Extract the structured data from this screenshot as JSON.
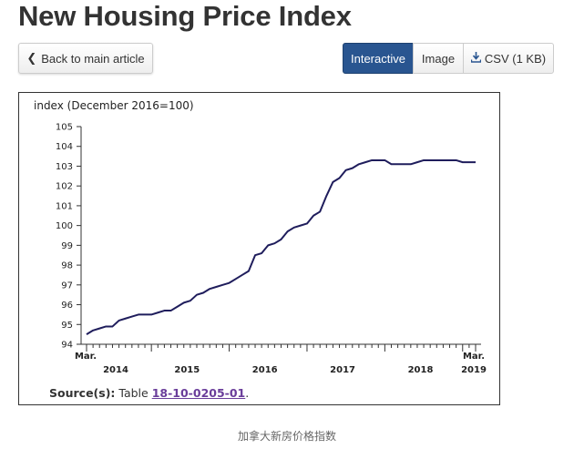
{
  "header": {
    "title": "New Housing Price Index"
  },
  "toolbar": {
    "back_label": "Back to main article",
    "view_tabs": [
      "Interactive",
      "Image",
      "CSV (1 KB)"
    ],
    "active_tab": "Interactive",
    "accent_color": "#295590"
  },
  "icons": {
    "back": "chevron-left-icon",
    "csv": "download-icon"
  },
  "chart_data": {
    "type": "line",
    "ylabel": "index (December 2016=100)",
    "ylim": [
      94,
      105
    ],
    "yticks": [
      94,
      95,
      96,
      97,
      98,
      99,
      100,
      101,
      102,
      103,
      104,
      105
    ],
    "x_start_label": "Mar.",
    "x_end_label": "Mar.",
    "years": [
      "2014",
      "2015",
      "2016",
      "2017",
      "2018",
      "2019"
    ],
    "line_color": "#1f1d5c",
    "grid": false,
    "series": [
      {
        "x": [
          "2014-03",
          "2014-04",
          "2014-05",
          "2014-06",
          "2014-07",
          "2014-08",
          "2014-09",
          "2014-10",
          "2014-11",
          "2014-12",
          "2015-01",
          "2015-02",
          "2015-03",
          "2015-04",
          "2015-05",
          "2015-06",
          "2015-07",
          "2015-08",
          "2015-09",
          "2015-10",
          "2015-11",
          "2015-12",
          "2016-01",
          "2016-02",
          "2016-03",
          "2016-04",
          "2016-05",
          "2016-06",
          "2016-07",
          "2016-08",
          "2016-09",
          "2016-10",
          "2016-11",
          "2016-12",
          "2017-01",
          "2017-02",
          "2017-03",
          "2017-04",
          "2017-05",
          "2017-06",
          "2017-07",
          "2017-08",
          "2017-09",
          "2017-10",
          "2017-11",
          "2017-12",
          "2018-01",
          "2018-02",
          "2018-03",
          "2018-04",
          "2018-05",
          "2018-06",
          "2018-07",
          "2018-08",
          "2018-09",
          "2018-10",
          "2018-11",
          "2018-12",
          "2019-01",
          "2019-02",
          "2019-03"
        ],
        "values": [
          94.5,
          94.7,
          94.8,
          94.9,
          94.9,
          95.2,
          95.3,
          95.4,
          95.5,
          95.5,
          95.5,
          95.6,
          95.7,
          95.7,
          95.9,
          96.1,
          96.2,
          96.5,
          96.6,
          96.8,
          96.9,
          97.0,
          97.1,
          97.3,
          97.5,
          97.7,
          98.5,
          98.6,
          99.0,
          99.1,
          99.3,
          99.7,
          99.9,
          100.0,
          100.1,
          100.5,
          100.7,
          101.5,
          102.2,
          102.4,
          102.8,
          102.9,
          103.1,
          103.2,
          103.3,
          103.3,
          103.3,
          103.1,
          103.1,
          103.1,
          103.1,
          103.2,
          103.3,
          103.3,
          103.3,
          103.3,
          103.3,
          103.3,
          103.2,
          103.2,
          103.2
        ]
      }
    ]
  },
  "source": {
    "label": "Source(s):",
    "prefix": "Table ",
    "table_id": "18-10-0205-01",
    "suffix": "."
  },
  "caption": "加拿大新房价格指数"
}
